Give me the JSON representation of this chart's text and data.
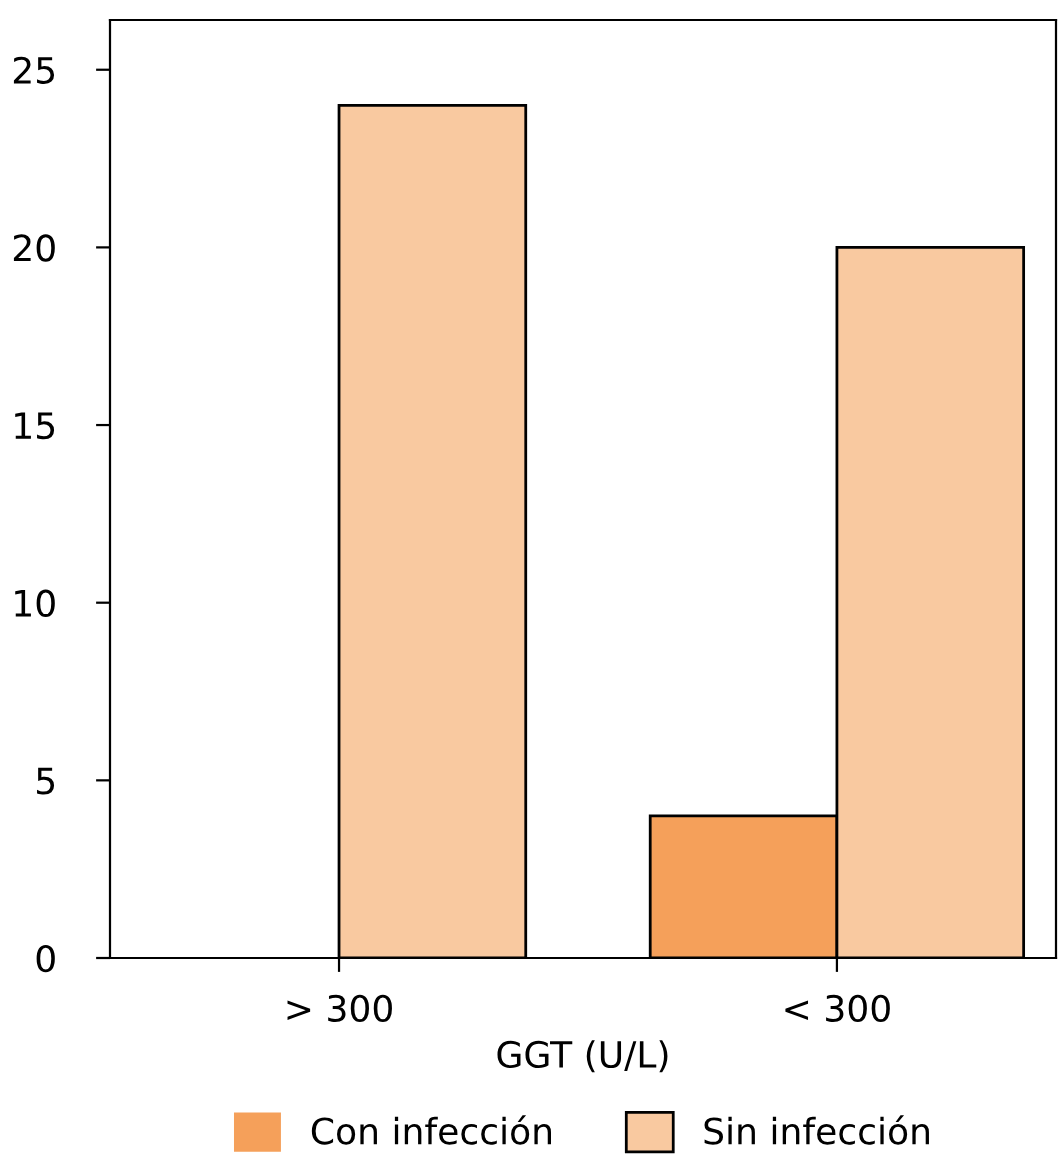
{
  "chart_data": {
    "type": "bar",
    "xlabel": "GGT (U/L)",
    "categories": [
      "> 300",
      "< 300"
    ],
    "series": [
      {
        "name": "Con infección",
        "color": "#f5a05a",
        "values": [
          0,
          4
        ]
      },
      {
        "name": "Sin infección",
        "color": "#f9c9a0",
        "values": [
          24,
          20
        ]
      }
    ],
    "ylim": [
      0,
      26.4
    ],
    "yticks": [
      0,
      5,
      10,
      15,
      20,
      25
    ],
    "grid": false,
    "legend": "bottom"
  }
}
